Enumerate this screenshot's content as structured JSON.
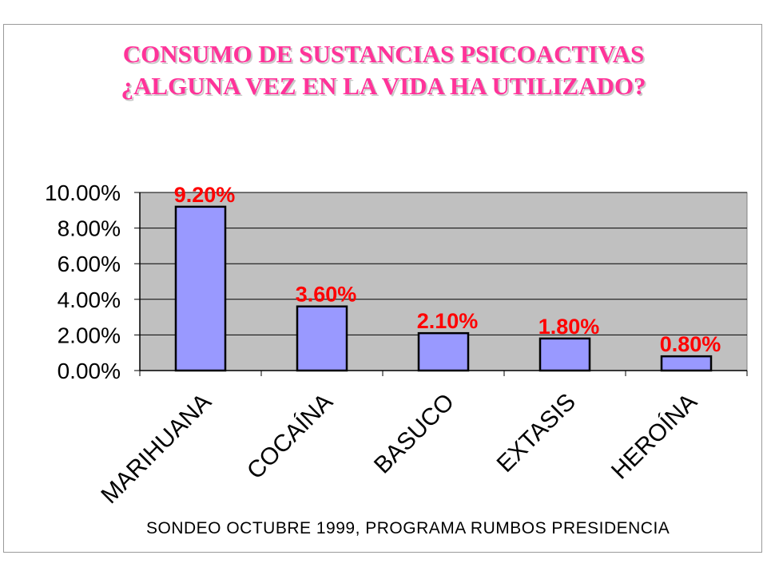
{
  "chart_data": {
    "type": "bar",
    "title": "CONSUMO DE SUSTANCIAS PSICOACTIVAS",
    "subtitle": "¿ALGUNA VEZ EN LA VIDA HA UTILIZADO?",
    "categories": [
      "MARIHUANA",
      "COCAÍNA",
      "BASUCO",
      "EXTASIS",
      "HEROÍNA"
    ],
    "values": [
      9.2,
      3.6,
      2.1,
      1.8,
      0.8
    ],
    "data_labels": [
      "9.20%",
      "3.60%",
      "2.10%",
      "1.80%",
      "0.80%"
    ],
    "y_ticks": [
      "0.00%",
      "2.00%",
      "4.00%",
      "6.00%",
      "8.00%",
      "10.00%"
    ],
    "ylim": [
      0,
      10
    ],
    "y_unit": "%",
    "grid": true,
    "legend": "none",
    "source_note": "SONDEO OCTUBRE 1999, PROGRAMA RUMBOS PRESIDENCIA",
    "colors": {
      "bar_fill": "#9999ff",
      "plot_background": "#c0c0c0",
      "title": "#ff3399",
      "data_label": "#ff0000"
    }
  }
}
